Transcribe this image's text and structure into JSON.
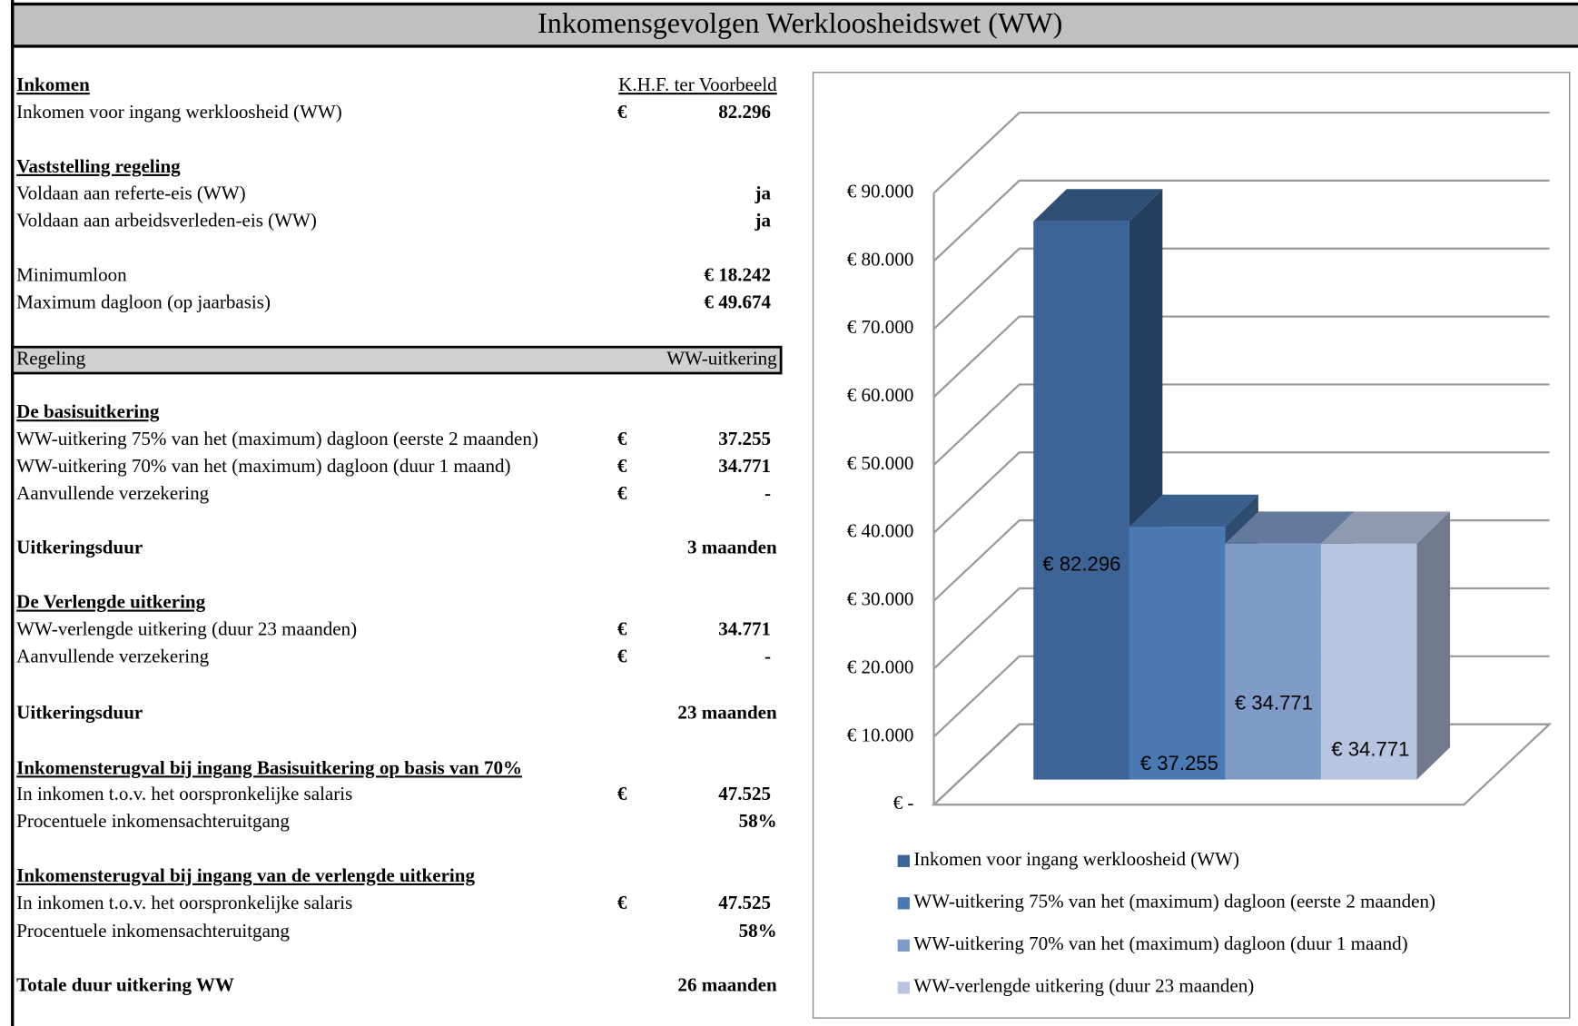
{
  "title": "Inkomensgevolgen Werkloosheidswet (WW)",
  "column_header": "K.H.F. ter Voorbeeld",
  "band": {
    "left": "Regeling",
    "right": "WW-uitkering"
  },
  "rows": [
    {
      "label": "Inkomen"
    },
    {
      "label": "Inkomen voor ingang werkloosheid (WW)",
      "currency": "€",
      "value": "82.296"
    },
    {
      "label": "Vaststelling regeling"
    },
    {
      "label": "Voldaan aan referte-eis (WW)",
      "value": "ja"
    },
    {
      "label": "Voldaan aan arbeidsverleden-eis (WW)",
      "value": "ja"
    },
    {
      "label": "Minimumloon",
      "value": "€ 18.242"
    },
    {
      "label": "Maximum dagloon (op jaarbasis)",
      "value": "€ 49.674"
    },
    {
      "label": "De basisuitkering"
    },
    {
      "label": "WW-uitkering 75% van het (maximum) dagloon (eerste 2 maanden)",
      "currency": "€",
      "value": "37.255"
    },
    {
      "label": "WW-uitkering 70% van het (maximum) dagloon (duur 1 maand)",
      "currency": "€",
      "value": "34.771"
    },
    {
      "label": "Aanvullende verzekering",
      "currency": "€",
      "value": "-"
    },
    {
      "label": "Uitkeringsduur",
      "value": "3 maanden"
    },
    {
      "label": "De Verlengde uitkering"
    },
    {
      "label": "WW-verlengde uitkering (duur 23 maanden)",
      "currency": "€",
      "value": "34.771"
    },
    {
      "label": "Aanvullende verzekering",
      "currency": "€",
      "value": "-"
    },
    {
      "label": "Uitkeringsduur",
      "value": "23 maanden"
    },
    {
      "label": "Inkomensterugval bij ingang Basisuitkering op basis van 70%"
    },
    {
      "label": "In inkomen t.o.v. het oorspronkelijke salaris",
      "currency": "€",
      "value": "47.525"
    },
    {
      "label": "Procentuele inkomensachteruitgang",
      "value": "58%"
    },
    {
      "label": "Inkomensterugval bij ingang van de verlengde uitkering"
    },
    {
      "label": "In inkomen t.o.v. het oorspronkelijke salaris",
      "currency": "€",
      "value": "47.525"
    },
    {
      "label": "Procentuele inkomensachteruitgang",
      "value": "58%"
    },
    {
      "label": "Totale duur uitkering WW",
      "value": "26 maanden"
    }
  ],
  "chart_data": {
    "type": "bar3d",
    "categories": [
      null
    ],
    "series": [
      {
        "name": "Inkomen voor ingang werkloosheid (WW)",
        "color": "#3c6496",
        "values": [
          82296
        ],
        "value_labels": [
          "€ 82.296"
        ]
      },
      {
        "name": "WW-uitkering 75% van het (maximum) dagloon (eerste 2 maanden)",
        "color": "#4a79b4",
        "values": [
          37255
        ],
        "value_labels": [
          "€ 37.255"
        ]
      },
      {
        "name": "WW-uitkering 70% van het (maximum) dagloon (duur 1 maand)",
        "color": "#7f9cc8",
        "values": [
          34771
        ],
        "value_labels": [
          "€ 34.771"
        ]
      },
      {
        "name": "WW-verlengde uitkering (duur 23 maanden)",
        "color": "#b7c5e1",
        "values": [
          34771
        ],
        "value_labels": [
          "€ 34.771"
        ]
      }
    ],
    "ylim": [
      0,
      90000
    ],
    "yticks": [
      {
        "value": 0,
        "label": "€ -"
      },
      {
        "value": 10000,
        "label": "€ 10.000"
      },
      {
        "value": 20000,
        "label": "€ 20.000"
      },
      {
        "value": 30000,
        "label": "€ 30.000"
      },
      {
        "value": 40000,
        "label": "€ 40.000"
      },
      {
        "value": 50000,
        "label": "€ 50.000"
      },
      {
        "value": 60000,
        "label": "€ 60.000"
      },
      {
        "value": 70000,
        "label": "€ 70.000"
      },
      {
        "value": 80000,
        "label": "€ 80.000"
      },
      {
        "value": 90000,
        "label": "€ 90.000"
      }
    ],
    "grid": true,
    "legend": "bottom"
  }
}
